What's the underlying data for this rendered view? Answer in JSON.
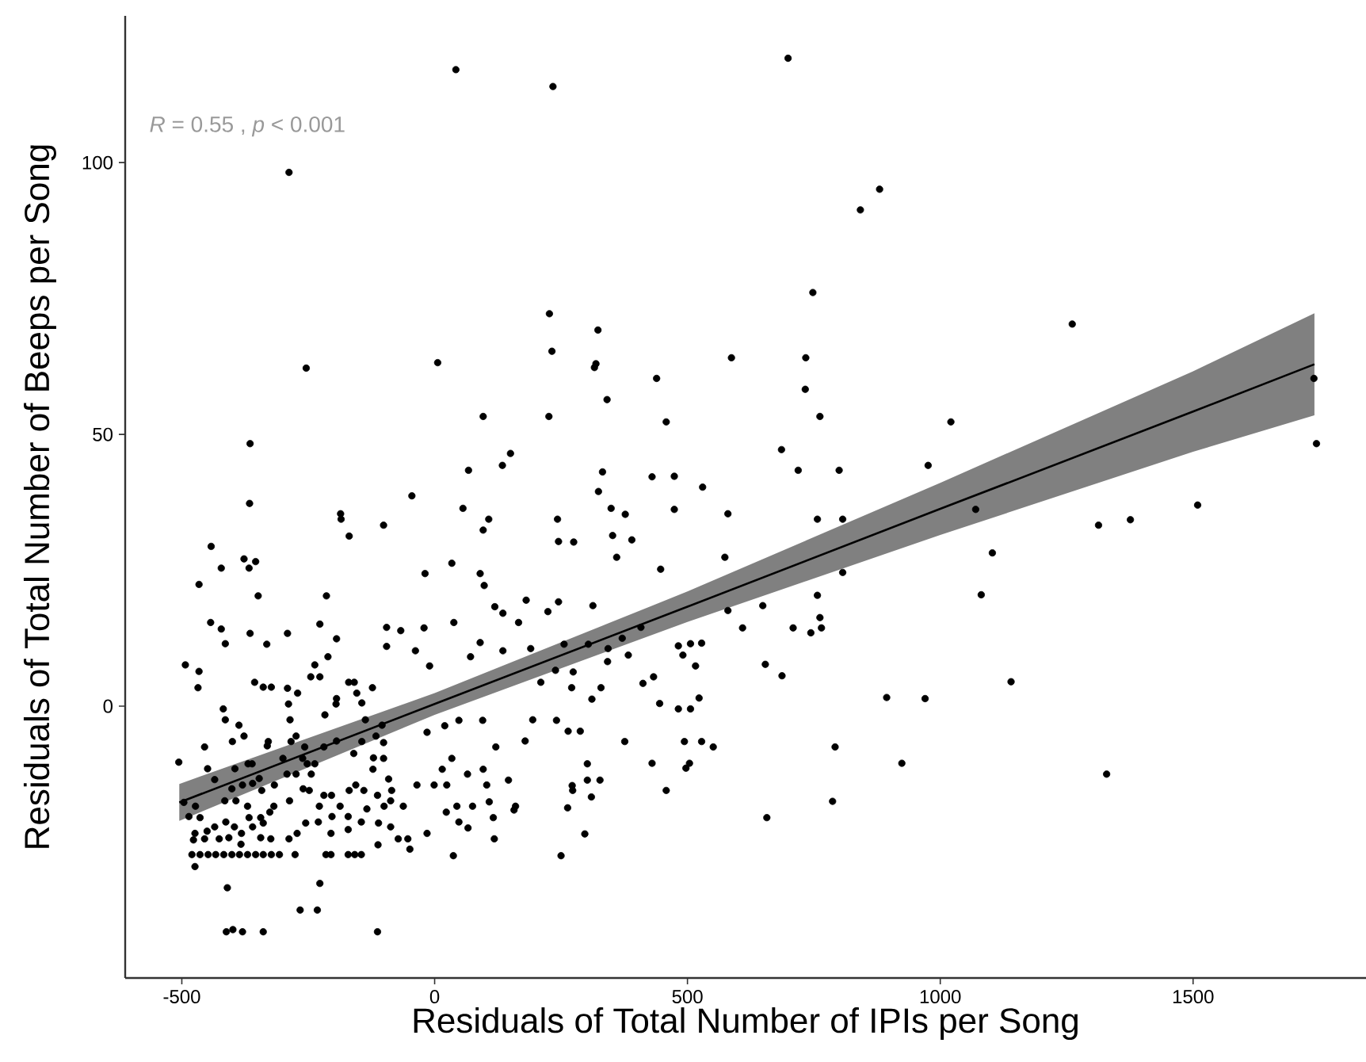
{
  "chart_data": {
    "type": "scatter",
    "xlabel": "Residuals of Total Number of IPIs per Song",
    "ylabel": "Residuals of Total Number of Beeps per Song",
    "annotations": [
      "*R* = 0.55 , *p* < 0.001"
    ],
    "xlim": [
      -612,
      1842
    ],
    "ylim": [
      -50,
      127
    ],
    "xticks": [
      -500,
      0,
      500,
      1000,
      1500
    ],
    "yticks": [
      0,
      50,
      100
    ],
    "series": [
      {
        "type": "scatter",
        "marker": "circle",
        "color": "#000000",
        "x": [
          42,
          -288,
          -254,
          6,
          96,
          -365,
          150,
          134,
          67,
          -45,
          234,
          699,
          880,
          842,
          748,
          227,
          323,
          232,
          319,
          316,
          439,
          587,
          734,
          341,
          733,
          226,
          458,
          762,
          1021,
          686,
          332,
          430,
          474,
          324,
          530,
          719,
          800,
          976,
          1261,
          1739,
          1744,
          1070,
          1103,
          1081,
          1313,
          1376,
          1509,
          1140,
          1329,
          243,
          349,
          377,
          474,
          580,
          757,
          807,
          245,
          275,
          352,
          390,
          360,
          574,
          447,
          807,
          757,
          762,
          765,
          744,
          709,
          649,
          609,
          580,
          313,
          224,
          245,
          256,
          304,
          343,
          371,
          408,
          342,
          383,
          482,
          506,
          528,
          491,
          516,
          654,
          687,
          239,
          274,
          210,
          271,
          329,
          311,
          412,
          433,
          445,
          482,
          506,
          523,
          894,
          970,
          241,
          264,
          288,
          376,
          494,
          528,
          551,
          792,
          302,
          430,
          504,
          497,
          924,
          272,
          273,
          302,
          327,
          310,
          458,
          263,
          787,
          297,
          657,
          250,
          -366,
          56,
          107,
          96,
          -186,
          -185,
          -169,
          -101,
          -442,
          -422,
          -377,
          -354,
          -367,
          -466,
          -349,
          -214,
          -19,
          34,
          90,
          98,
          119,
          135,
          181,
          166,
          -443,
          -422,
          -414,
          -365,
          -332,
          -291,
          -227,
          -194,
          -95,
          -67,
          -21,
          38,
          -95,
          -38,
          -10,
          71,
          90,
          135,
          190,
          -493,
          -466,
          -468,
          -418,
          -414,
          -387,
          -377,
          -400,
          -455,
          -506,
          -449,
          -356,
          -339,
          -323,
          -291,
          -271,
          -245,
          -237,
          -227,
          -211,
          -289,
          -286,
          -284,
          -274,
          -331,
          -329,
          -361,
          -395,
          -435,
          -217,
          -194,
          -195,
          -170,
          -159,
          -154,
          -144,
          -123,
          -137,
          -116,
          -104,
          -144,
          -160,
          -194,
          -219,
          -237,
          -257,
          -261,
          -252,
          -244,
          -300,
          -292,
          -274,
          -347,
          -369,
          -380,
          -401,
          -415,
          -393,
          -360,
          -342,
          -317,
          -287,
          -260,
          -248,
          -219,
          -204,
          -169,
          -156,
          -140,
          -122,
          -121,
          -101,
          -101,
          -91,
          -113,
          -85,
          -100,
          -87,
          -62,
          -35,
          -1,
          24,
          15,
          34,
          65,
          96,
          103,
          121,
          146,
          179,
          194,
          48,
          95,
          20,
          -15,
          44,
          75,
          108,
          116,
          157,
          160,
          23,
          48,
          66,
          118,
          37,
          -15,
          -49,
          -53,
          -72,
          -87,
          -111,
          -112,
          -134,
          -145,
          -171,
          -171,
          -187,
          -203,
          -205,
          -228,
          -230,
          -255,
          -272,
          -288,
          -318,
          -326,
          -344,
          -370,
          -367,
          -360,
          -339,
          -382,
          -396,
          -413,
          -435,
          -450,
          -474,
          -477,
          -455,
          -426,
          -407,
          -383,
          -344,
          -324,
          -473,
          -464,
          -486,
          -496,
          -480,
          -464,
          -448,
          -433,
          -417,
          -401,
          -386,
          -370,
          -354,
          -339,
          -323,
          -307,
          -276,
          -215,
          -205,
          -171,
          -158,
          -145,
          -474,
          -410,
          -227,
          -266,
          -232,
          -412,
          -399,
          -380,
          -339,
          -113
        ],
        "values": [
          117.1,
          98.2,
          62.2,
          63.2,
          53.3,
          48.3,
          46.5,
          44.3,
          43.4,
          38.7,
          114.0,
          119.2,
          95.1,
          91.3,
          76.1,
          72.2,
          69.2,
          65.3,
          63.0,
          62.3,
          60.3,
          64.1,
          64.1,
          56.4,
          58.3,
          53.3,
          52.3,
          53.3,
          52.3,
          47.2,
          43.1,
          42.2,
          42.3,
          39.5,
          40.3,
          43.4,
          43.4,
          44.3,
          70.3,
          60.3,
          48.3,
          36.2,
          28.2,
          20.5,
          33.3,
          34.3,
          37.0,
          4.5,
          -12.5,
          34.4,
          36.4,
          35.3,
          36.2,
          35.4,
          34.4,
          34.4,
          30.3,
          30.2,
          31.4,
          30.6,
          27.4,
          27.4,
          25.2,
          24.6,
          20.4,
          16.3,
          14.4,
          13.5,
          14.4,
          18.5,
          14.4,
          17.6,
          18.5,
          17.4,
          19.2,
          11.4,
          11.4,
          10.6,
          12.5,
          14.5,
          8.2,
          9.4,
          11.1,
          11.5,
          11.6,
          9.4,
          7.4,
          7.7,
          5.6,
          6.6,
          6.3,
          4.4,
          3.4,
          3.4,
          1.3,
          4.2,
          5.4,
          0.5,
          -0.5,
          -0.5,
          1.5,
          1.6,
          1.4,
          -2.6,
          -4.6,
          -4.6,
          -6.5,
          -6.5,
          -6.5,
          -7.5,
          -7.5,
          -10.6,
          -10.5,
          -10.5,
          -11.4,
          -10.5,
          -14.6,
          -15.5,
          -13.6,
          -13.6,
          -16.7,
          -15.5,
          -18.7,
          -17.5,
          -23.5,
          -20.5,
          -27.5,
          37.3,
          36.4,
          34.4,
          32.4,
          35.4,
          34.4,
          31.3,
          33.3,
          29.4,
          25.4,
          27.1,
          26.6,
          25.4,
          22.4,
          20.3,
          20.3,
          24.4,
          26.3,
          24.4,
          22.2,
          18.3,
          17.1,
          19.5,
          15.4,
          15.4,
          14.2,
          11.5,
          13.4,
          11.4,
          13.4,
          15.1,
          12.4,
          14.5,
          13.9,
          14.4,
          15.4,
          11.0,
          10.2,
          7.4,
          9.1,
          11.7,
          10.2,
          10.6,
          7.6,
          6.4,
          3.4,
          -0.5,
          -2.5,
          -3.5,
          -5.5,
          -6.5,
          -7.5,
          -10.3,
          -11.5,
          4.4,
          3.5,
          3.5,
          3.3,
          2.4,
          5.4,
          7.6,
          5.4,
          9.1,
          0.4,
          -2.5,
          -6.5,
          -5.5,
          -7.3,
          -6.5,
          -10.6,
          -11.5,
          -13.5,
          -1.6,
          1.4,
          0.4,
          4.4,
          4.4,
          2.4,
          0.6,
          3.4,
          -2.5,
          -5.5,
          -3.5,
          -6.5,
          -8.7,
          -6.4,
          -7.5,
          -10.6,
          -7.5,
          -9.6,
          -10.6,
          -12.5,
          -9.6,
          -12.5,
          -12.5,
          -13.3,
          -10.6,
          -14.5,
          -15.2,
          -17.4,
          -17.4,
          -14.2,
          -15.5,
          -14.5,
          -17.4,
          -15.2,
          -15.5,
          -16.4,
          -16.4,
          -15.5,
          -14.5,
          -15.5,
          -11.6,
          -9.5,
          -9.6,
          -6.7,
          -13.4,
          -16.4,
          -15.5,
          -18.4,
          -17.4,
          -18.4,
          -14.5,
          -14.5,
          -14.5,
          -11.6,
          -9.6,
          -12.5,
          -11.6,
          -14.5,
          -7.5,
          -13.6,
          -6.4,
          -2.5,
          -2.6,
          -2.6,
          -3.6,
          -4.8,
          -18.4,
          -18.4,
          -17.6,
          -20.5,
          -19.1,
          -18.4,
          -19.5,
          -21.3,
          -22.4,
          -24.4,
          -27.5,
          -23.4,
          -26.3,
          -24.4,
          -24.4,
          -22.2,
          -21.5,
          -25.5,
          -18.9,
          -21.3,
          -20.3,
          -22.7,
          -18.4,
          -20.3,
          -23.4,
          -18.4,
          -21.3,
          -21.5,
          -23.4,
          -24.4,
          -18.4,
          -19.5,
          -20.5,
          -18.4,
          -20.5,
          -22.2,
          -21.5,
          -23.4,
          -22.2,
          -21.3,
          -22.2,
          -23.0,
          -23.4,
          -24.6,
          -24.4,
          -24.4,
          -24.2,
          -25.4,
          -24.2,
          -24.4,
          -18.4,
          -20.5,
          -20.3,
          -17.7,
          -27.3,
          -27.3,
          -27.3,
          -27.3,
          -27.3,
          -27.3,
          -27.3,
          -27.3,
          -27.3,
          -27.3,
          -27.3,
          -27.3,
          -27.3,
          -27.3,
          -27.3,
          -27.3,
          -27.3,
          -27.3,
          -29.5,
          -33.4,
          -32.6,
          -37.5,
          -37.5,
          -41.5,
          -41.1,
          -41.5,
          -41.5,
          -41.5
        ]
      },
      {
        "type": "line",
        "color": "#000000",
        "x": [
          -505,
          0,
          500,
          1000,
          1500,
          1740
        ],
        "values": [
          -17.7,
          0.4,
          18.3,
          36.3,
          54.2,
          62.9
        ],
        "lower": [
          -21.1,
          -1.6,
          15.5,
          31.5,
          46.8,
          53.5
        ],
        "upper": [
          -14.3,
          2.4,
          21.1,
          41.1,
          61.6,
          72.3
        ]
      }
    ]
  }
}
